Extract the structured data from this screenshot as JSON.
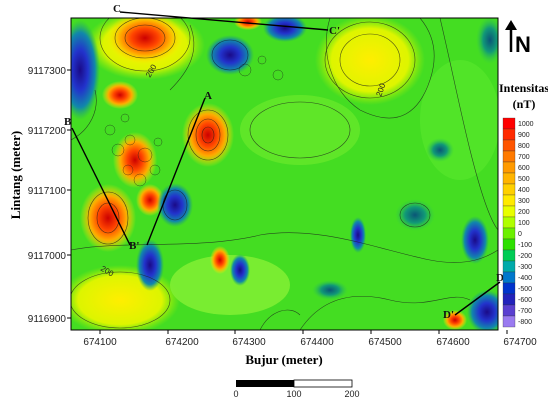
{
  "map": {
    "y_axis_label": "Lintang (meter)",
    "x_axis_label": "Bujur (meter)",
    "y_ticks": [
      "9117300",
      "9117200",
      "9117100",
      "9117000",
      "9116900"
    ],
    "x_ticks": [
      "674100",
      "674200",
      "674300",
      "674400",
      "674500",
      "674600",
      "674700"
    ],
    "profile_labels": [
      "A",
      "A'",
      "B",
      "B'",
      "C",
      "C'",
      "D",
      "D'"
    ],
    "contour_labels": [
      "200",
      "200",
      "200"
    ],
    "north_label": "N"
  },
  "legend": {
    "title_line1": "Intensitas",
    "title_line2": "(nT)",
    "values": [
      "1000",
      "900",
      "800",
      "700",
      "600",
      "500",
      "400",
      "300",
      "200",
      "100",
      "0",
      "-100",
      "-200",
      "-300",
      "-400",
      "-500",
      "-600",
      "-700",
      "-800"
    ],
    "colors": [
      "#ff0000",
      "#ff2a00",
      "#ff5500",
      "#ff7a00",
      "#ff9a00",
      "#ffb400",
      "#ffd000",
      "#ffea00",
      "#e8ff00",
      "#b0ff00",
      "#6cf000",
      "#2ee000",
      "#00cc55",
      "#00aaaa",
      "#0077cc",
      "#0033cc",
      "#2222bb",
      "#5a3fd0",
      "#9a7af0"
    ]
  },
  "scale_bar": {
    "labels": [
      "0",
      "100",
      "200"
    ]
  },
  "colors": {
    "green": "#44dd22",
    "light_green": "#88f033",
    "yellow": "#ffee00",
    "orange": "#ff9a00",
    "red": "#ee2200",
    "blue": "#1144cc",
    "dark_blue": "#0a1fa0",
    "teal": "#118866"
  }
}
